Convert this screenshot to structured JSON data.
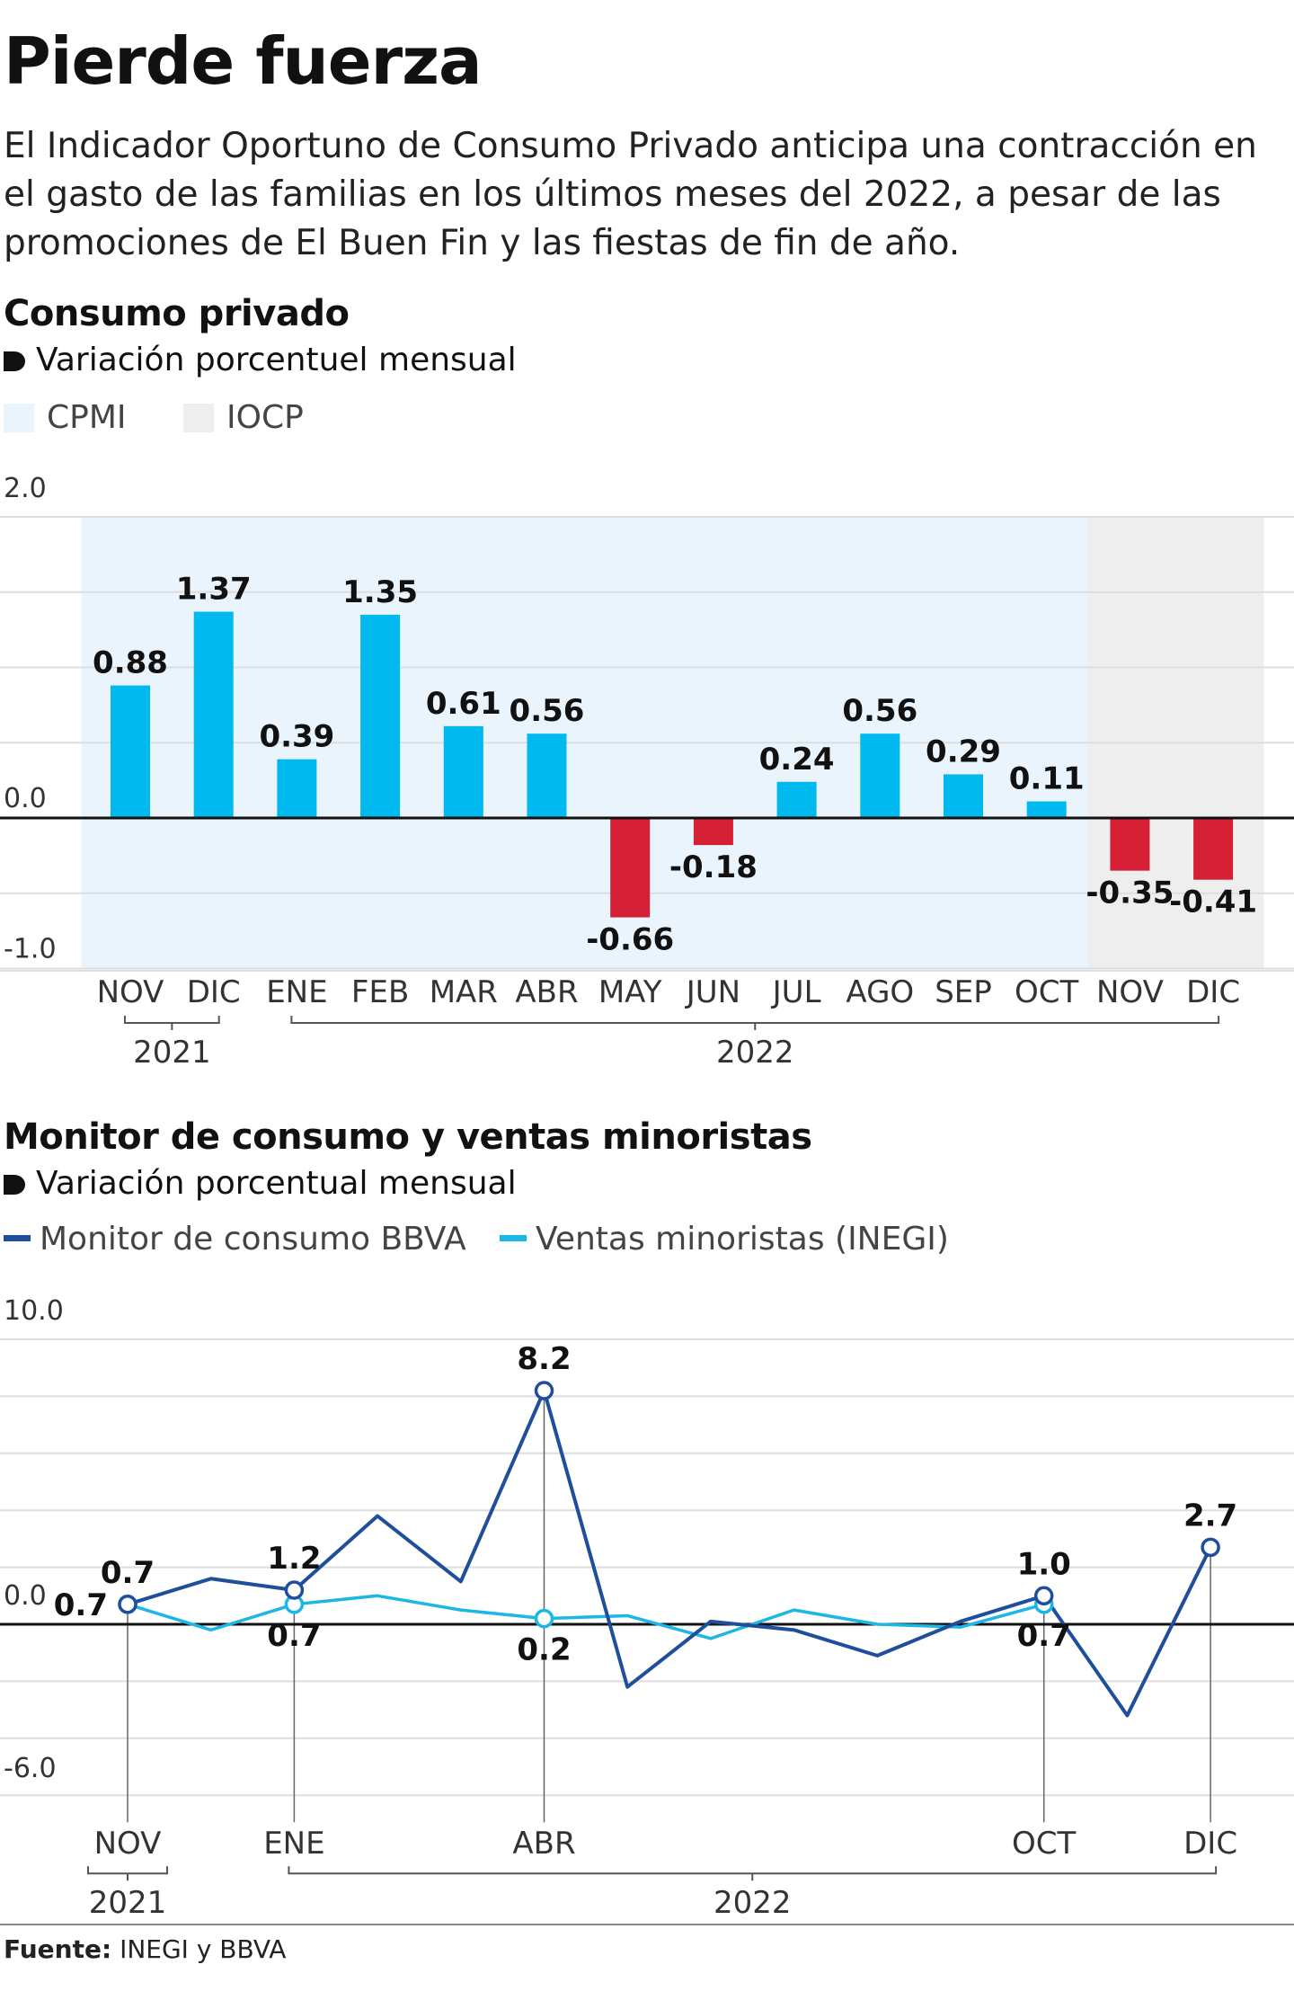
{
  "header": {
    "title": "Pierde fuerza",
    "intro": "El Indicador Oportuno de Consumo Privado anticipa una contracción en el gasto de las familias en los últimos meses del 2022, a pesar de las promociones de El Buen Fin y las fiestas de fin de año."
  },
  "chart1": {
    "title": "Consumo privado",
    "subtitle": "Variación porcentuel mensual",
    "legend": [
      {
        "label": "CPMI",
        "color": "#e9f4fc"
      },
      {
        "label": "IOCP",
        "color": "#eeeeee"
      }
    ]
  },
  "chart2": {
    "title": "Monitor de consumo y ventas minoristas",
    "subtitle": "Variación porcentual mensual",
    "legend": [
      {
        "label": "Monitor de consumo BBVA",
        "color": "#1f4e9c"
      },
      {
        "label": "Ventas minoristas (INEGI)",
        "color": "#1cb7e4"
      }
    ]
  },
  "chart_data": [
    {
      "type": "bar",
      "title": "Consumo privado",
      "subtitle": "Variación porcentuel mensual",
      "categories": [
        "NOV",
        "DIC",
        "ENE",
        "FEB",
        "MAR",
        "ABR",
        "MAY",
        "JUN",
        "JUL",
        "AGO",
        "SEP",
        "OCT",
        "NOV",
        "DIC"
      ],
      "values": [
        0.88,
        1.37,
        0.39,
        1.35,
        0.61,
        0.56,
        -0.66,
        -0.18,
        0.24,
        0.56,
        0.29,
        0.11,
        -0.35,
        -0.41
      ],
      "labels": [
        "0.88",
        "1.37",
        "0.39",
        "1.35",
        "0.61",
        "0.56",
        "-0.66",
        "-0.18",
        "0.24",
        "0.56",
        "0.29",
        "0.11",
        "-0.35",
        "-0.41"
      ],
      "ylim": [
        -1.0,
        2.0
      ],
      "yticks": [
        "2.0",
        "0.0",
        "-1.0"
      ],
      "year_groups": [
        {
          "label": "2021",
          "from": 0,
          "to": 1
        },
        {
          "label": "2022",
          "from": 2,
          "to": 13
        }
      ],
      "shaded_regions": [
        {
          "legend": "CPMI",
          "from": 0,
          "to": 11
        },
        {
          "legend": "IOCP",
          "from": 12,
          "to": 13
        }
      ],
      "positive_color": "#00b9ee",
      "negative_color": "#d51f35",
      "grid": true
    },
    {
      "type": "line",
      "title": "Monitor de consumo y ventas minoristas",
      "subtitle": "Variación porcentual mensual",
      "x": [
        "NOV 2021",
        "DIC 2021",
        "ENE 2022",
        "FEB 2022",
        "MAR 2022",
        "ABR 2022",
        "MAY 2022",
        "JUN 2022",
        "JUL 2022",
        "AGO 2022",
        "SEP 2022",
        "OCT 2022",
        "NOV 2022",
        "DIC 2022"
      ],
      "xtick_labels": [
        "NOV",
        "",
        "ENE",
        "",
        "",
        "ABR",
        "",
        "",
        "",
        "",
        "",
        "OCT",
        "",
        "DIC"
      ],
      "series": [
        {
          "name": "Monitor de consumo BBVA",
          "color": "#1f4e9c",
          "values": [
            0.7,
            1.6,
            1.2,
            3.8,
            1.5,
            8.2,
            -2.2,
            0.1,
            -0.2,
            -1.1,
            0.1,
            1.0,
            -3.2,
            2.7
          ],
          "labels": {
            "0": "0.7",
            "2": "1.2",
            "5": "8.2",
            "11": "1.0",
            "13": "2.7"
          },
          "markers": [
            0,
            2,
            5,
            11,
            13
          ]
        },
        {
          "name": "Ventas minoristas (INEGI)",
          "color": "#1cb7e4",
          "values": [
            0.7,
            -0.2,
            0.7,
            1.0,
            0.5,
            0.2,
            0.3,
            -0.5,
            0.5,
            0.0,
            -0.1,
            0.7,
            null,
            null
          ],
          "labels": {
            "0": "0.7",
            "2": "0.7",
            "5": "0.2",
            "11": "0.7"
          },
          "markers": [
            0,
            2,
            5,
            11
          ]
        }
      ],
      "ylim": [
        -6.0,
        10.0
      ],
      "yticks": [
        "10.0",
        "0.0",
        "-6.0"
      ],
      "year_groups": [
        {
          "label": "2021",
          "from": 0,
          "to": 0
        },
        {
          "label": "2022",
          "from": 2,
          "to": 13
        }
      ],
      "grid": true
    }
  ],
  "footer": {
    "source_label": "Fuente:",
    "source_text": " INEGI y BBVA"
  }
}
